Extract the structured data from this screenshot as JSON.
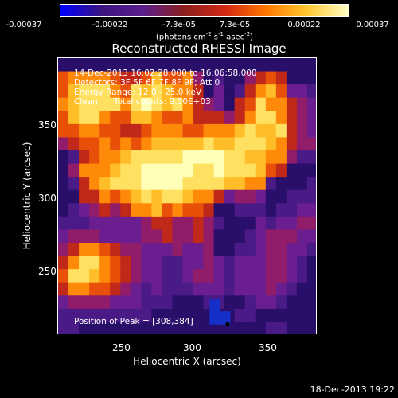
{
  "colorbar": {
    "ticks": [
      "-0.00037",
      "-0.00022",
      "-7.3e-05",
      "7.3e-05",
      "0.00022",
      "0.00037"
    ],
    "units_main": "(photons cm",
    "units_exp1": "-2",
    "units_mid": " s",
    "units_exp2": "-1",
    "units_end": " asec",
    "units_exp3": "-2",
    "units_close": ")"
  },
  "title": "Reconstructed RHESSI Image",
  "info": {
    "time": "14-Dec-2013 16:02:28.000 to 16:06:58.000",
    "detectors": "Detectors: 3F 5F 6F 7F 8F 9F; Att 0",
    "energy": "Energy Range: 12.0 - 25.0 keV",
    "clean": "Clean      Total counts: 9.30E+03"
  },
  "peak": "Position of Peak = [308,384]",
  "footer_date": "18-Dec-2013 19:22",
  "colors": {
    "colormap": [
      "#0000ff",
      "#3a1480",
      "#5a1e8c",
      "#8c1e1e",
      "#d22814",
      "#ff7800",
      "#ffc832",
      "#ffffc8"
    ],
    "background": "#000000",
    "peak_marker": "#000000"
  },
  "chart_data": {
    "type": "heatmap",
    "title": "Reconstructed RHESSI Image",
    "xlabel": "Heliocentric X (arcsec)",
    "ylabel": "Heliocentric Y (arcsec)",
    "xticks": [
      250,
      300,
      350
    ],
    "yticks": [
      250,
      300,
      350
    ],
    "xlim": [
      210,
      400
    ],
    "ylim": [
      200,
      390
    ],
    "colorbar_range": [
      -0.00037,
      0.00037
    ],
    "peak_position": [
      308,
      384
    ],
    "rows_top_to_bottom": [
      "0000000000000000000000000",
      "5666654457556301003454000",
      "5788865878766402014675221",
      "6788886898786432045866432",
      "5788655776556444346886432",
      "5566554456665566678778432",
      "3455656567777787788876433",
      "0145667888889999887766311",
      "0366678899999889888754000",
      "0146788899998888776610001",
      "0044656787887664233200111",
      "0123434667565540011101122",
      "1112222234433431000212233",
      "2333222233433430001233322",
      "3466543322232230011233221",
      "4688654322112232122233210",
      "5887654322112332122233210",
      "4665543212111222122232100",
      "2333322211100011001221000",
      "1111111110000000011000000",
      "1100000000000000000011000"
    ]
  }
}
